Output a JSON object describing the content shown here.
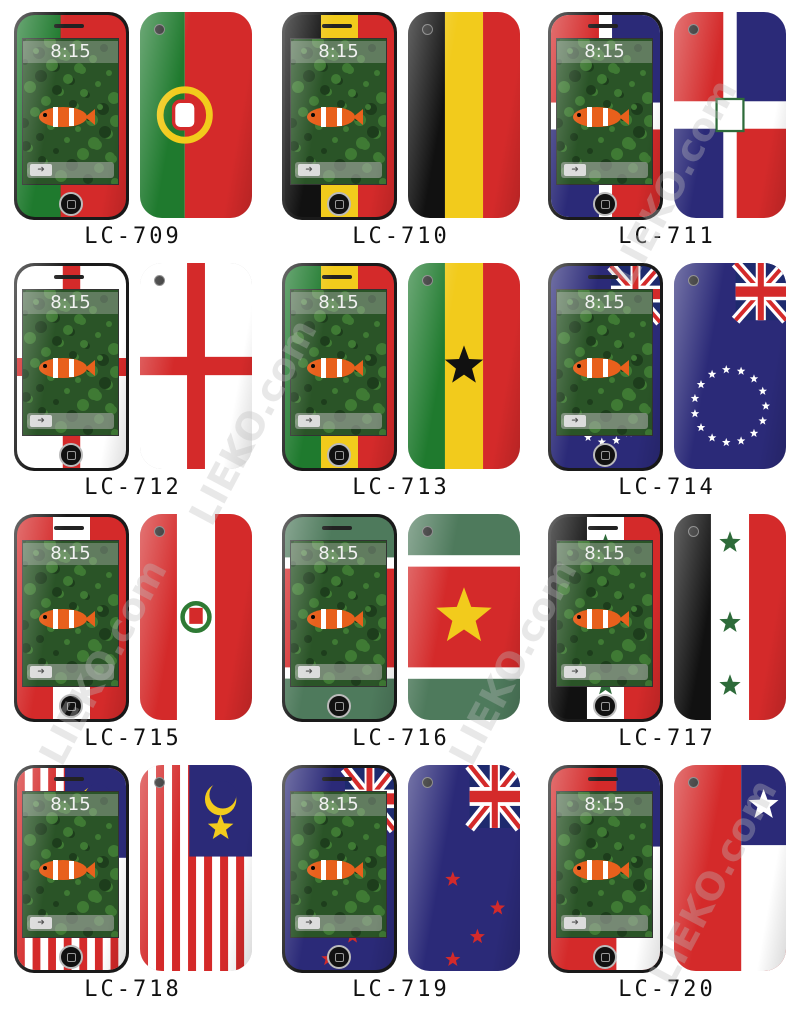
{
  "lock_time": "8:15",
  "watermark": "LIEKO.com",
  "products": [
    {
      "code": "LC-709",
      "flag": "portugal"
    },
    {
      "code": "LC-710",
      "flag": "belgium"
    },
    {
      "code": "LC-711",
      "flag": "dominican-republic"
    },
    {
      "code": "LC-712",
      "flag": "england"
    },
    {
      "code": "LC-713",
      "flag": "ghana"
    },
    {
      "code": "LC-714",
      "flag": "cook-islands"
    },
    {
      "code": "LC-715",
      "flag": "peru"
    },
    {
      "code": "LC-716",
      "flag": "suriname"
    },
    {
      "code": "LC-717",
      "flag": "iraq"
    },
    {
      "code": "LC-718",
      "flag": "malaysia"
    },
    {
      "code": "LC-719",
      "flag": "new-zealand"
    },
    {
      "code": "LC-720",
      "flag": "chile"
    }
  ],
  "colors": {
    "red": "#d42a2a",
    "green": "#1f7a2e",
    "yellow": "#f2cb1c",
    "navy": "#2b2a78",
    "black": "#111111",
    "white": "#ffffff",
    "suriname_green": "#4e7a5c"
  }
}
